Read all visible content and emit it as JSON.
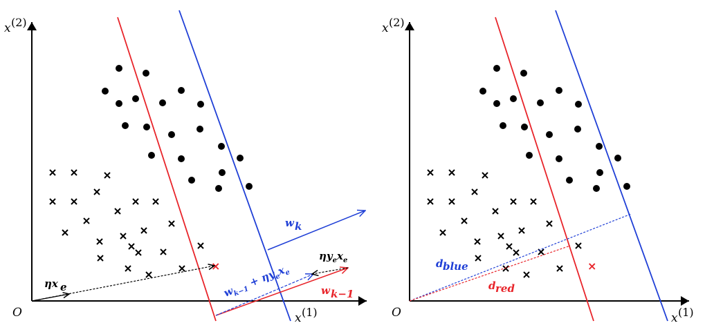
{
  "colors": {
    "red": "#e8242a",
    "blue": "#1f3fd6",
    "black": "#000000"
  },
  "left_panel": {
    "origin_label": "O",
    "x_axis_label": "x",
    "x_axis_sup": "(1)",
    "y_axis_label": "x",
    "y_axis_sup": "(2)",
    "label_eta_x_e": "ηx",
    "label_eta_x_e_sub": "e",
    "label_w_k": "w",
    "label_w_k_sub": "k",
    "label_w_k_minus_1": "w",
    "label_w_k_minus_1_sub": "k−1",
    "label_update_main": "w",
    "label_update_sub": "k−1",
    "label_update_rest": " + ηy",
    "label_update_sub2": "e",
    "label_update_end": "x",
    "label_update_sub3": "e",
    "label_eta_ye_xe": "ηy",
    "label_eta_ye_xe_sub": "e",
    "label_eta_ye_xe_end": "x",
    "label_eta_ye_xe_sub2": "e",
    "misclassified_marker": "×"
  },
  "right_panel": {
    "origin_label": "O",
    "x_axis_label": "x",
    "x_axis_sup": "(1)",
    "y_axis_label": "x",
    "y_axis_sup": "(2)",
    "label_d_blue": "d",
    "label_d_blue_sub": "blue",
    "label_d_red": "d",
    "label_d_red_sub": "red",
    "misclassified_marker": "×"
  }
}
